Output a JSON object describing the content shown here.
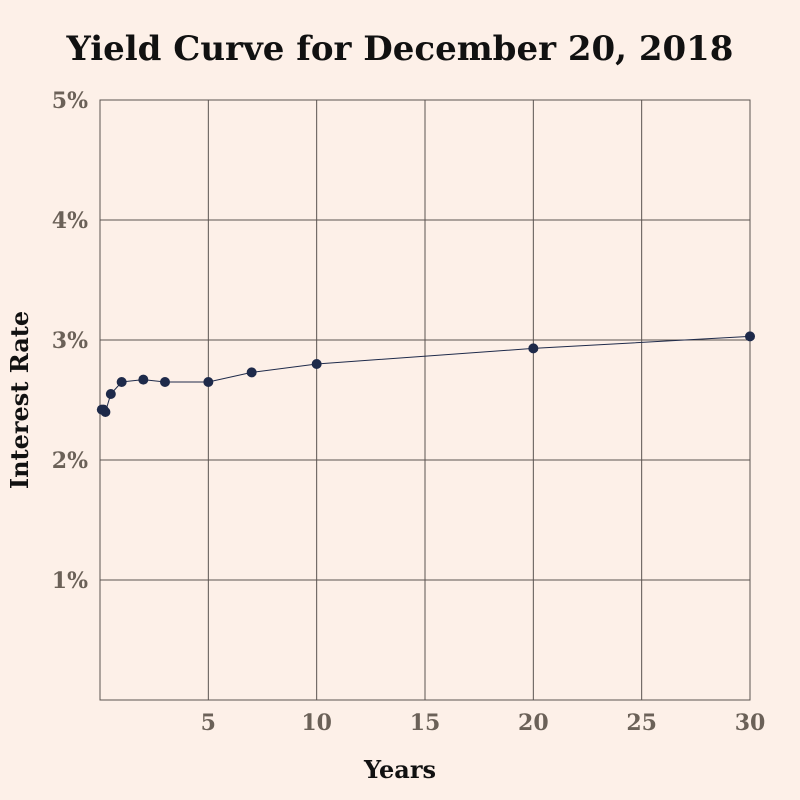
{
  "chart_data": {
    "type": "line",
    "title": "Yield Curve for December 20, 2018",
    "xlabel": "Years",
    "ylabel": "Interest Rate",
    "xlim": [
      0,
      30
    ],
    "ylim": [
      0,
      5
    ],
    "x_ticks": [
      5,
      10,
      15,
      20,
      25,
      30
    ],
    "y_ticks": [
      1,
      2,
      3,
      4,
      5
    ],
    "y_tick_suffix": "%",
    "grid": true,
    "legend": "none",
    "colors": {
      "background": "#fdf0e8",
      "series": "#1e2a4a",
      "grid": "#5a5350",
      "tick_text": "#6b6158"
    },
    "series": [
      {
        "x": [
          0.0833,
          0.1667,
          0.25,
          0.5,
          1,
          2,
          3,
          5,
          7,
          10,
          20,
          30
        ],
        "y": [
          2.42,
          2.42,
          2.4,
          2.55,
          2.65,
          2.67,
          2.65,
          2.65,
          2.73,
          2.8,
          2.93,
          3.03
        ]
      }
    ]
  }
}
